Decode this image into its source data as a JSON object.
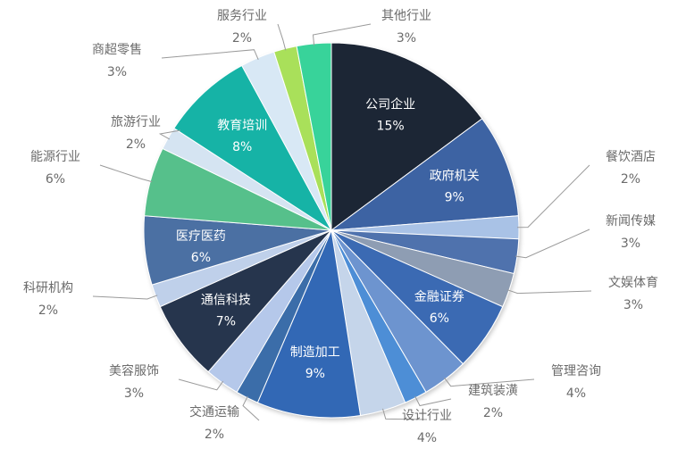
{
  "chart_data": {
    "type": "pie",
    "title": "",
    "slices": [
      {
        "name": "公司企业",
        "value": 15,
        "label": "15%",
        "color": "#1c2536",
        "label_side": "inside"
      },
      {
        "name": "政府机关",
        "value": 9,
        "label": "9%",
        "color": "#3e63a3",
        "label_side": "inside"
      },
      {
        "name": "餐饮酒店",
        "value": 2,
        "label": "2%",
        "color": "#a9c2e6",
        "label_side": "right"
      },
      {
        "name": "新闻传媒",
        "value": 3,
        "label": "3%",
        "color": "#4f72ad",
        "label_side": "right"
      },
      {
        "name": "文娱体育",
        "value": 3,
        "label": "3%",
        "color": "#8e9db3",
        "label_side": "right"
      },
      {
        "name": "金融证券",
        "value": 6,
        "label": "6%",
        "color": "#3a6bb3",
        "label_side": "inside"
      },
      {
        "name": "管理咨询",
        "value": 4,
        "label": "4%",
        "color": "#6d94cf",
        "label_side": "right"
      },
      {
        "name": "建筑装潢",
        "value": 2,
        "label": "2%",
        "color": "#4d8ed6",
        "label_side": "right"
      },
      {
        "name": "设计行业",
        "value": 4,
        "label": "4%",
        "color": "#c5d5ea",
        "label_side": "left"
      },
      {
        "name": "制造加工",
        "value": 9,
        "label": "9%",
        "color": "#3367b5",
        "label_side": "inside"
      },
      {
        "name": "交通运输",
        "value": 2,
        "label": "2%",
        "color": "#3a6da9",
        "label_side": "left"
      },
      {
        "name": "美容服饰",
        "value": 3,
        "label": "3%",
        "color": "#b5c8ea",
        "label_side": "left"
      },
      {
        "name": "通信科技",
        "value": 7,
        "label": "7%",
        "color": "#26344e",
        "label_side": "inside"
      },
      {
        "name": "科研机构",
        "value": 2,
        "label": "2%",
        "color": "#bfd0ea",
        "label_side": "left"
      },
      {
        "name": "医疗医药",
        "value": 6,
        "label": "6%",
        "color": "#4b6fa3",
        "label_side": "inside"
      },
      {
        "name": "能源行业",
        "value": 6,
        "label": "6%",
        "color": "#56c08b",
        "label_side": "left"
      },
      {
        "name": "旅游行业",
        "value": 2,
        "label": "2%",
        "color": "#d5e4f2",
        "label_side": "left"
      },
      {
        "name": "教育培训",
        "value": 8,
        "label": "8%",
        "color": "#14b3a6",
        "label_side": "inside"
      },
      {
        "name": "商超零售",
        "value": 3,
        "label": "3%",
        "color": "#d8e8f5",
        "label_side": "left"
      },
      {
        "name": "服务行业",
        "value": 2,
        "label": "2%",
        "color": "#a9e05a",
        "label_side": "left"
      },
      {
        "name": "其他行业",
        "value": 3,
        "label": "3%",
        "color": "#38d39a",
        "label_side": "right"
      }
    ],
    "legend": "none"
  }
}
